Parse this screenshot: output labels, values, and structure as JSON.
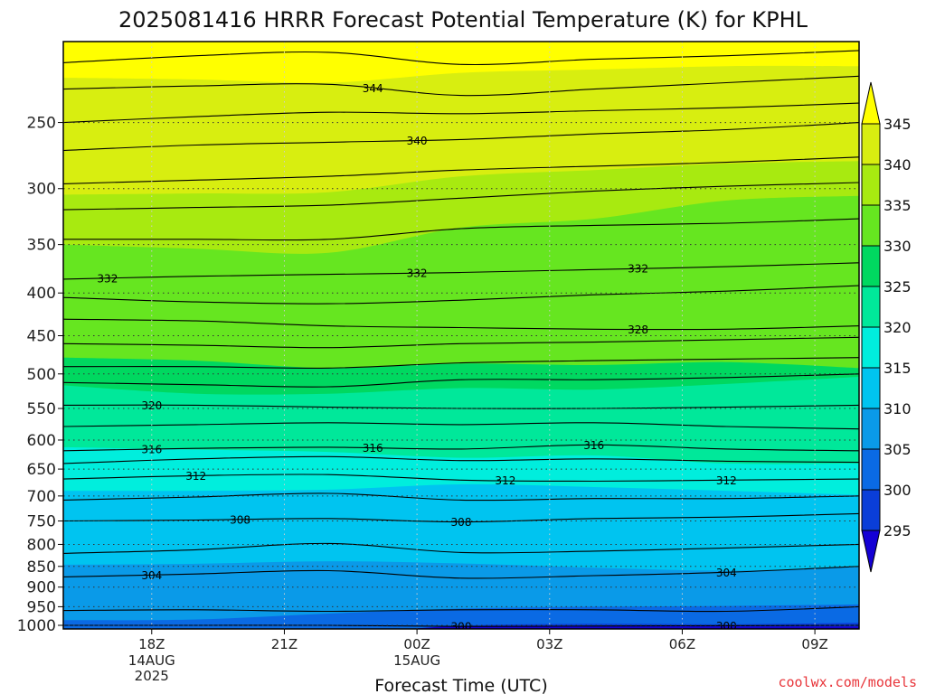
{
  "chart_data": {
    "type": "contour",
    "title": "2025081416 HRRR Forecast Potential Temperature (K) for KPHL",
    "xlabel": "Forecast Time (UTC)",
    "ylabel": "",
    "x_ticks": [
      {
        "label": "18Z",
        "sub": [
          "14AUG",
          "2025"
        ],
        "hours": 2
      },
      {
        "label": "21Z",
        "sub": [],
        "hours": 5
      },
      {
        "label": "00Z",
        "sub": [
          "15AUG"
        ],
        "hours": 8
      },
      {
        "label": "03Z",
        "sub": [],
        "hours": 11
      },
      {
        "label": "06Z",
        "sub": [],
        "hours": 14
      },
      {
        "label": "09Z",
        "sub": [],
        "hours": 17
      }
    ],
    "x_range_hours": [
      0,
      18
    ],
    "y_ticks": [
      250,
      300,
      350,
      400,
      450,
      500,
      550,
      600,
      650,
      700,
      750,
      800,
      850,
      900,
      950,
      1000
    ],
    "y_range_hPa": [
      1010,
      200
    ],
    "y_scale": "log-pressure",
    "colorbar": {
      "ticks": [
        295,
        300,
        305,
        310,
        315,
        320,
        325,
        330,
        335,
        340,
        345
      ],
      "colors": [
        "#1400d4",
        "#0a3ed8",
        "#0a6ae4",
        "#0a9ae8",
        "#00c4f0",
        "#00eedd",
        "#00e89a",
        "#00d860",
        "#66e620",
        "#a8ea10",
        "#d8ee10",
        "#ffff00"
      ],
      "extend": "both"
    },
    "fill_levels": [
      {
        "k": 297,
        "p": [
          1005,
          1005,
          1005,
          1004,
          1003,
          1003,
          1003
        ]
      },
      {
        "k": 300,
        "p": [
          1030,
          1030,
          1025,
          1001,
          996,
          997,
          993
        ]
      },
      {
        "k": 305,
        "p": [
          986,
          984,
          968,
          955,
          950,
          948,
          944
        ]
      },
      {
        "k": 310,
        "p": [
          846,
          844,
          838,
          843,
          853,
          860,
          852
        ]
      },
      {
        "k": 315,
        "p": [
          690,
          690,
          688,
          678,
          683,
          690,
          698
        ]
      },
      {
        "k": 320,
        "p": [
          612,
          616,
          620,
          630,
          626,
          640,
          640
        ]
      },
      {
        "k": 325,
        "p": [
          516,
          528,
          528,
          520,
          522,
          514,
          504
        ]
      },
      {
        "k": 330,
        "p": [
          478,
          482,
          492,
          486,
          488,
          484,
          492
        ]
      },
      {
        "k": 335,
        "p": [
          350,
          354,
          358,
          334,
          326,
          310,
          306
        ]
      },
      {
        "k": 340,
        "p": [
          305,
          304,
          303,
          290,
          285,
          280,
          278
        ]
      },
      {
        "k": 345,
        "p": [
          221,
          222,
          224,
          218,
          216,
          214,
          214
        ]
      }
    ],
    "isentropes": [
      {
        "k": 300,
        "p": [
          1000,
          1000,
          1000,
          1003,
          1002,
          1001,
          1000
        ],
        "label_hours": [
          9.0,
          15.0
        ]
      },
      {
        "k": 302,
        "p": [
          960,
          958,
          962,
          958,
          958,
          962,
          950
        ]
      },
      {
        "k": 304,
        "p": [
          875,
          868,
          860,
          878,
          872,
          864,
          850
        ],
        "label_hours": [
          2.0,
          15.0
        ]
      },
      {
        "k": 306,
        "p": [
          820,
          812,
          798,
          818,
          815,
          808,
          800
        ]
      },
      {
        "k": 308,
        "p": [
          750,
          748,
          745,
          752,
          745,
          742,
          735
        ],
        "label_hours": [
          4.0,
          9.0
        ]
      },
      {
        "k": 310,
        "p": [
          708,
          702,
          695,
          708,
          705,
          705,
          700
        ]
      },
      {
        "k": 312,
        "p": [
          668,
          662,
          660,
          670,
          672,
          670,
          668
        ],
        "label_hours": [
          3.0,
          10.0,
          15.0
        ]
      },
      {
        "k": 314,
        "p": [
          640,
          632,
          628,
          635,
          632,
          636,
          638
        ]
      },
      {
        "k": 316,
        "p": [
          618,
          614,
          612,
          615,
          608,
          615,
          618
        ],
        "label_hours": [
          2.0,
          7.0,
          12.0
        ]
      },
      {
        "k": 318,
        "p": [
          578,
          575,
          572,
          575,
          572,
          578,
          582
        ]
      },
      {
        "k": 320,
        "p": [
          545,
          545,
          548,
          550,
          550,
          548,
          545
        ],
        "label_hours": [
          2.0
        ]
      },
      {
        "k": 322,
        "p": [
          512,
          515,
          518,
          508,
          508,
          505,
          500
        ]
      },
      {
        "k": 324,
        "p": [
          490,
          490,
          492,
          485,
          482,
          480,
          478
        ]
      },
      {
        "k": 326,
        "p": [
          460,
          462,
          465,
          460,
          458,
          455,
          452
        ]
      },
      {
        "k": 328,
        "p": [
          430,
          432,
          438,
          440,
          442,
          442,
          438
        ],
        "label_hours": [
          13.0
        ]
      },
      {
        "k": 330,
        "p": [
          405,
          410,
          412,
          408,
          402,
          398,
          392
        ]
      },
      {
        "k": 332,
        "p": [
          385,
          382,
          380,
          378,
          375,
          372,
          368
        ],
        "label_hours": [
          1.0,
          8.0,
          13.0
        ]
      },
      {
        "k": 334,
        "p": [
          345,
          345,
          345,
          335,
          332,
          330,
          326
        ]
      },
      {
        "k": 336,
        "p": [
          318,
          316,
          314,
          308,
          302,
          298,
          295
        ]
      },
      {
        "k": 338,
        "p": [
          296,
          293,
          290,
          285,
          282,
          279,
          275
        ]
      },
      {
        "k": 340,
        "p": [
          270,
          266,
          264,
          262,
          258,
          255,
          250
        ],
        "label_hours": [
          8.0
        ]
      },
      {
        "k": 342,
        "p": [
          250,
          246,
          243,
          244,
          242,
          240,
          237
        ]
      },
      {
        "k": 344,
        "p": [
          228,
          226,
          225,
          232,
          228,
          224,
          220
        ],
        "label_hours": [
          7.0
        ]
      },
      {
        "k": 346,
        "p": [
          212,
          208,
          206,
          213,
          210,
          208,
          205
        ]
      }
    ],
    "ground_color": "#a0522d",
    "ground_top_hPa": 1010
  },
  "credit": "coolwx.com/models"
}
